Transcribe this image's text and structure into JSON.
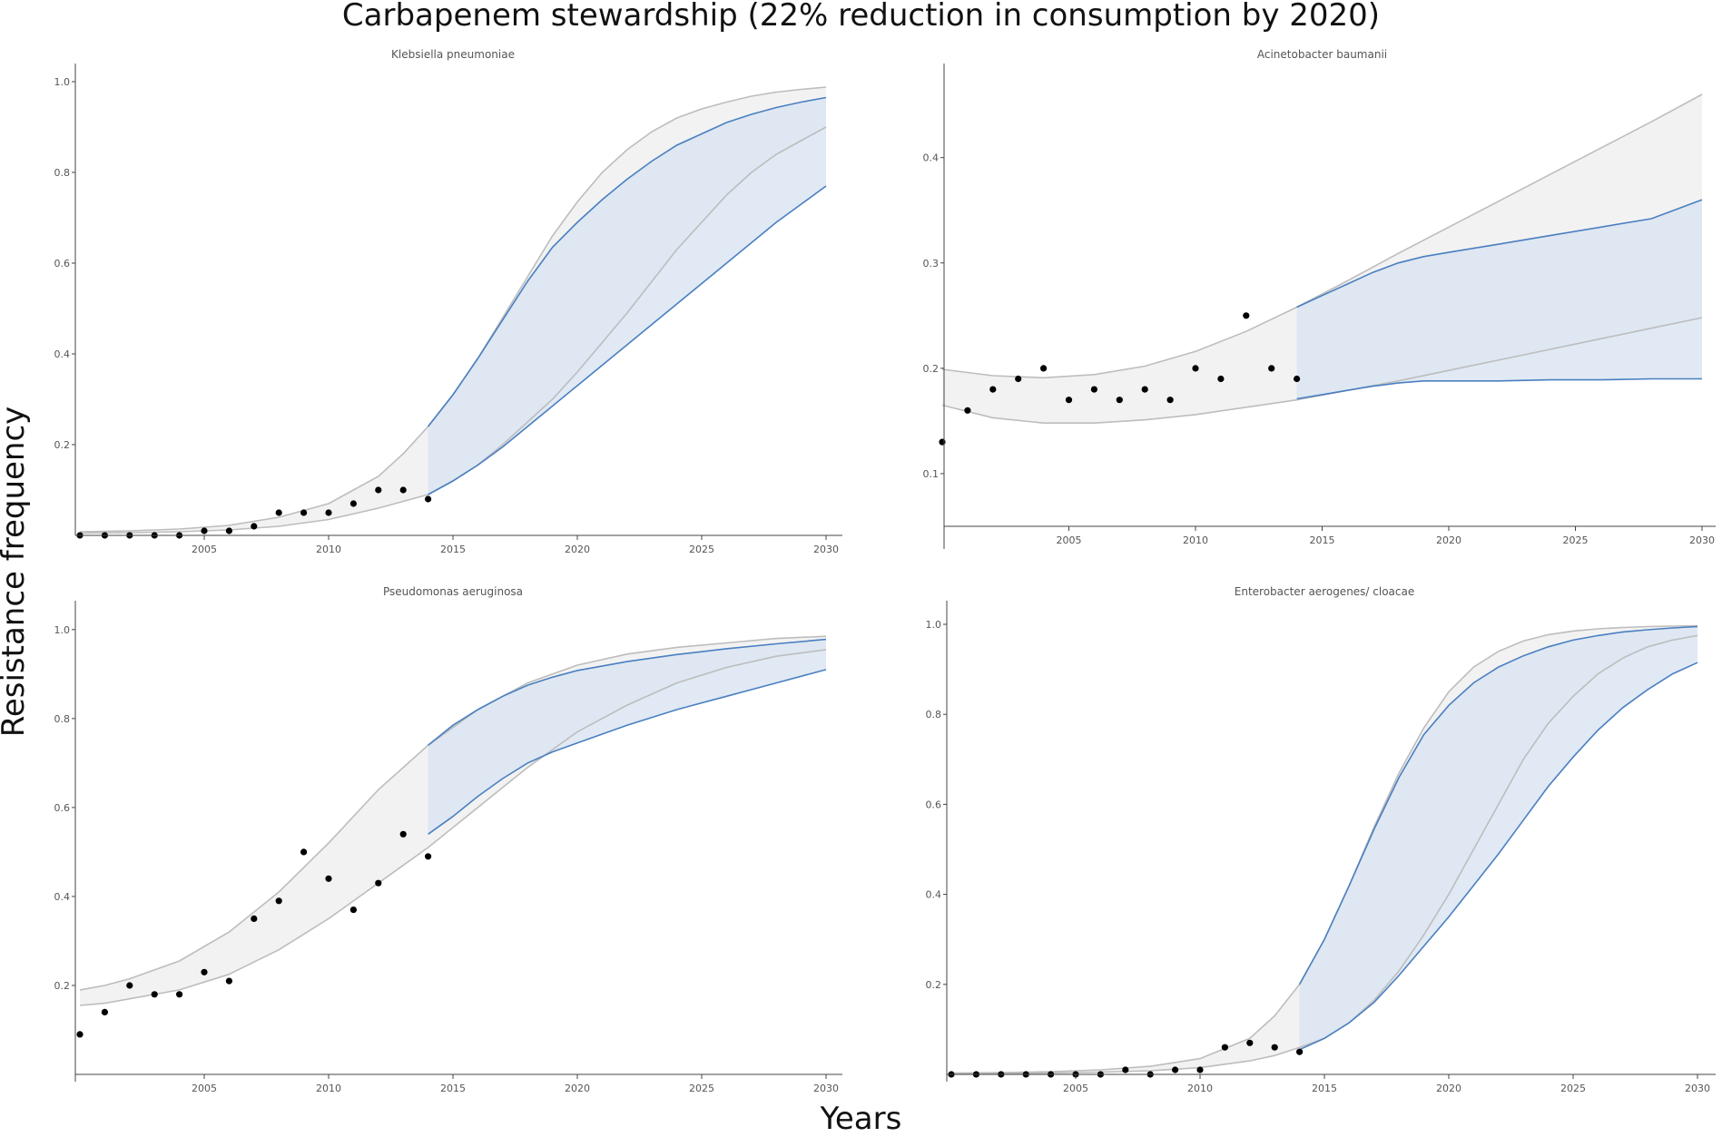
{
  "figure": {
    "title": "Carbapenem stewardship (22% reduction in consumption by 2020)",
    "xlabel": "Years",
    "ylabel": "Resistance frequency"
  },
  "colors": {
    "observed_band": "#f2f2f2",
    "observed_band_edge": "#bdbdbd",
    "projection_band": "#dbe5f2",
    "projection_overlap": "#d0dbe7",
    "projection_edge": "#4a7fc1",
    "points": "#000000"
  },
  "chart_data": [
    {
      "type": "line",
      "title": "Klebsiella pneumoniae",
      "xlim": [
        2000,
        2030
      ],
      "ylim": [
        0,
        1.0
      ],
      "x_ticks": [
        2005,
        2010,
        2015,
        2020,
        2025,
        2030
      ],
      "y_ticks": [
        0.2,
        0.4,
        0.6,
        0.8,
        1.0
      ],
      "observed": {
        "x": [
          2000,
          2001,
          2002,
          2003,
          2004,
          2005,
          2006,
          2007,
          2008,
          2009,
          2010,
          2011,
          2012,
          2013,
          2014
        ],
        "y": [
          0,
          0,
          0,
          0,
          0,
          0.01,
          0.01,
          0.02,
          0.05,
          0.05,
          0.05,
          0.07,
          0.1,
          0.1,
          0.08
        ]
      },
      "baseline_band": {
        "x": [
          2000,
          2002,
          2004,
          2006,
          2008,
          2010,
          2012,
          2013,
          2014,
          2015,
          2016,
          2017,
          2018,
          2019,
          2020,
          2021,
          2022,
          2023,
          2024,
          2025,
          2026,
          2027,
          2028,
          2029,
          2030
        ],
        "lower": [
          0.005,
          0.006,
          0.008,
          0.012,
          0.02,
          0.035,
          0.06,
          0.075,
          0.09,
          0.12,
          0.155,
          0.2,
          0.25,
          0.3,
          0.36,
          0.425,
          0.49,
          0.56,
          0.63,
          0.69,
          0.75,
          0.8,
          0.84,
          0.87,
          0.9
        ],
        "upper": [
          0.008,
          0.01,
          0.014,
          0.022,
          0.04,
          0.07,
          0.13,
          0.18,
          0.24,
          0.31,
          0.39,
          0.48,
          0.57,
          0.66,
          0.735,
          0.8,
          0.85,
          0.89,
          0.92,
          0.94,
          0.955,
          0.968,
          0.977,
          0.983,
          0.988
        ]
      },
      "projection_band": {
        "x": [
          2014,
          2015,
          2016,
          2017,
          2018,
          2019,
          2020,
          2021,
          2022,
          2023,
          2024,
          2025,
          2026,
          2027,
          2028,
          2029,
          2030
        ],
        "lower": [
          0.09,
          0.12,
          0.155,
          0.195,
          0.24,
          0.285,
          0.33,
          0.375,
          0.42,
          0.465,
          0.51,
          0.555,
          0.6,
          0.645,
          0.69,
          0.73,
          0.77
        ],
        "upper": [
          0.24,
          0.31,
          0.39,
          0.475,
          0.56,
          0.635,
          0.69,
          0.74,
          0.785,
          0.825,
          0.86,
          0.885,
          0.91,
          0.928,
          0.943,
          0.955,
          0.965
        ]
      }
    },
    {
      "type": "line",
      "title": "Acinetobacter baumanii",
      "xlim": [
        2000,
        2030
      ],
      "ylim": [
        0.05,
        0.46
      ],
      "x_ticks": [
        2005,
        2010,
        2015,
        2020,
        2025,
        2030
      ],
      "y_ticks": [
        0.1,
        0.2,
        0.3,
        0.4
      ],
      "observed": {
        "x": [
          2000,
          2001,
          2002,
          2003,
          2004,
          2005,
          2006,
          2007,
          2008,
          2009,
          2010,
          2011,
          2012,
          2013,
          2014
        ],
        "y": [
          0.13,
          0.16,
          0.18,
          0.19,
          0.2,
          0.17,
          0.18,
          0.17,
          0.18,
          0.17,
          0.2,
          0.19,
          0.25,
          0.2,
          0.19
        ]
      },
      "baseline_band": {
        "x": [
          2000,
          2002,
          2004,
          2006,
          2008,
          2010,
          2012,
          2014,
          2016,
          2018,
          2020,
          2022,
          2024,
          2026,
          2028,
          2030
        ],
        "lower": [
          0.165,
          0.153,
          0.148,
          0.148,
          0.151,
          0.156,
          0.163,
          0.17,
          0.179,
          0.188,
          0.198,
          0.208,
          0.218,
          0.228,
          0.238,
          0.248
        ],
        "upper": [
          0.199,
          0.193,
          0.191,
          0.194,
          0.202,
          0.216,
          0.235,
          0.258,
          0.283,
          0.309,
          0.334,
          0.359,
          0.384,
          0.409,
          0.434,
          0.46
        ]
      },
      "projection_band": {
        "x": [
          2014,
          2015,
          2016,
          2017,
          2018,
          2019,
          2020,
          2022,
          2024,
          2026,
          2028,
          2030
        ],
        "lower": [
          0.171,
          0.175,
          0.179,
          0.183,
          0.186,
          0.188,
          0.188,
          0.188,
          0.189,
          0.189,
          0.19,
          0.19
        ],
        "upper": [
          0.258,
          0.269,
          0.28,
          0.291,
          0.3,
          0.306,
          0.31,
          0.318,
          0.326,
          0.334,
          0.342,
          0.36
        ]
      }
    },
    {
      "type": "line",
      "title": "Pseudomonas aeruginosa",
      "xlim": [
        2000,
        2030
      ],
      "ylim": [
        0.0,
        1.02
      ],
      "x_ticks": [
        2005,
        2010,
        2015,
        2020,
        2025,
        2030
      ],
      "y_ticks": [
        0.2,
        0.4,
        0.6,
        0.8,
        1.0
      ],
      "observed": {
        "x": [
          2000,
          2001,
          2002,
          2003,
          2004,
          2005,
          2006,
          2007,
          2008,
          2009,
          2010,
          2011,
          2012,
          2013,
          2014
        ],
        "y": [
          0.09,
          0.14,
          0.2,
          0.18,
          0.18,
          0.23,
          0.21,
          0.35,
          0.39,
          0.5,
          0.44,
          0.37,
          0.43,
          0.54,
          0.49
        ]
      },
      "baseline_band": {
        "x": [
          2000,
          2001,
          2002,
          2004,
          2006,
          2008,
          2010,
          2012,
          2014,
          2016,
          2018,
          2020,
          2022,
          2024,
          2026,
          2028,
          2030
        ],
        "lower": [
          0.155,
          0.16,
          0.17,
          0.19,
          0.225,
          0.28,
          0.35,
          0.43,
          0.51,
          0.6,
          0.69,
          0.77,
          0.83,
          0.88,
          0.915,
          0.94,
          0.955
        ],
        "upper": [
          0.19,
          0.2,
          0.215,
          0.255,
          0.32,
          0.41,
          0.52,
          0.64,
          0.74,
          0.82,
          0.88,
          0.92,
          0.945,
          0.96,
          0.97,
          0.98,
          0.985
        ]
      },
      "projection_band": {
        "x": [
          2014,
          2015,
          2016,
          2017,
          2018,
          2019,
          2020,
          2022,
          2024,
          2026,
          2028,
          2030
        ],
        "lower": [
          0.54,
          0.58,
          0.625,
          0.665,
          0.7,
          0.725,
          0.745,
          0.785,
          0.82,
          0.85,
          0.88,
          0.91
        ],
        "upper": [
          0.74,
          0.785,
          0.82,
          0.85,
          0.875,
          0.893,
          0.908,
          0.928,
          0.944,
          0.957,
          0.968,
          0.978
        ]
      }
    },
    {
      "type": "line",
      "title": "Enterobacter aerogenes/ cloacae",
      "xlim": [
        2000,
        2030
      ],
      "ylim": [
        0,
        1.0
      ],
      "x_ticks": [
        2005,
        2010,
        2015,
        2020,
        2025,
        2030
      ],
      "y_ticks": [
        0.2,
        0.4,
        0.6,
        0.8,
        1.0
      ],
      "observed": {
        "x": [
          2000,
          2001,
          2002,
          2003,
          2004,
          2005,
          2006,
          2007,
          2008,
          2009,
          2010,
          2011,
          2012,
          2013,
          2014
        ],
        "y": [
          0,
          0,
          0,
          0,
          0,
          0,
          0,
          0.01,
          0,
          0.01,
          0.01,
          0.06,
          0.07,
          0.06,
          0.05
        ]
      },
      "baseline_band": {
        "x": [
          2000,
          2002,
          2004,
          2006,
          2008,
          2010,
          2012,
          2013,
          2014,
          2015,
          2016,
          2017,
          2018,
          2019,
          2020,
          2021,
          2022,
          2023,
          2024,
          2025,
          2026,
          2027,
          2028,
          2029,
          2030
        ],
        "lower": [
          0.002,
          0.002,
          0.003,
          0.005,
          0.008,
          0.015,
          0.03,
          0.042,
          0.06,
          0.08,
          0.115,
          0.165,
          0.23,
          0.31,
          0.4,
          0.5,
          0.6,
          0.7,
          0.78,
          0.84,
          0.89,
          0.925,
          0.95,
          0.965,
          0.975
        ],
        "upper": [
          0.003,
          0.004,
          0.006,
          0.01,
          0.018,
          0.035,
          0.08,
          0.13,
          0.2,
          0.3,
          0.42,
          0.55,
          0.67,
          0.77,
          0.85,
          0.905,
          0.94,
          0.963,
          0.977,
          0.985,
          0.99,
          0.993,
          0.995,
          0.996,
          0.997
        ]
      },
      "projection_band": {
        "x": [
          2014,
          2015,
          2016,
          2017,
          2018,
          2019,
          2020,
          2021,
          2022,
          2023,
          2024,
          2025,
          2026,
          2027,
          2028,
          2029,
          2030
        ],
        "lower": [
          0.055,
          0.08,
          0.115,
          0.16,
          0.22,
          0.285,
          0.35,
          0.42,
          0.49,
          0.565,
          0.64,
          0.705,
          0.765,
          0.815,
          0.855,
          0.89,
          0.915
        ],
        "upper": [
          0.2,
          0.3,
          0.42,
          0.545,
          0.66,
          0.755,
          0.82,
          0.87,
          0.905,
          0.93,
          0.95,
          0.965,
          0.975,
          0.983,
          0.988,
          0.992,
          0.995
        ]
      }
    }
  ]
}
